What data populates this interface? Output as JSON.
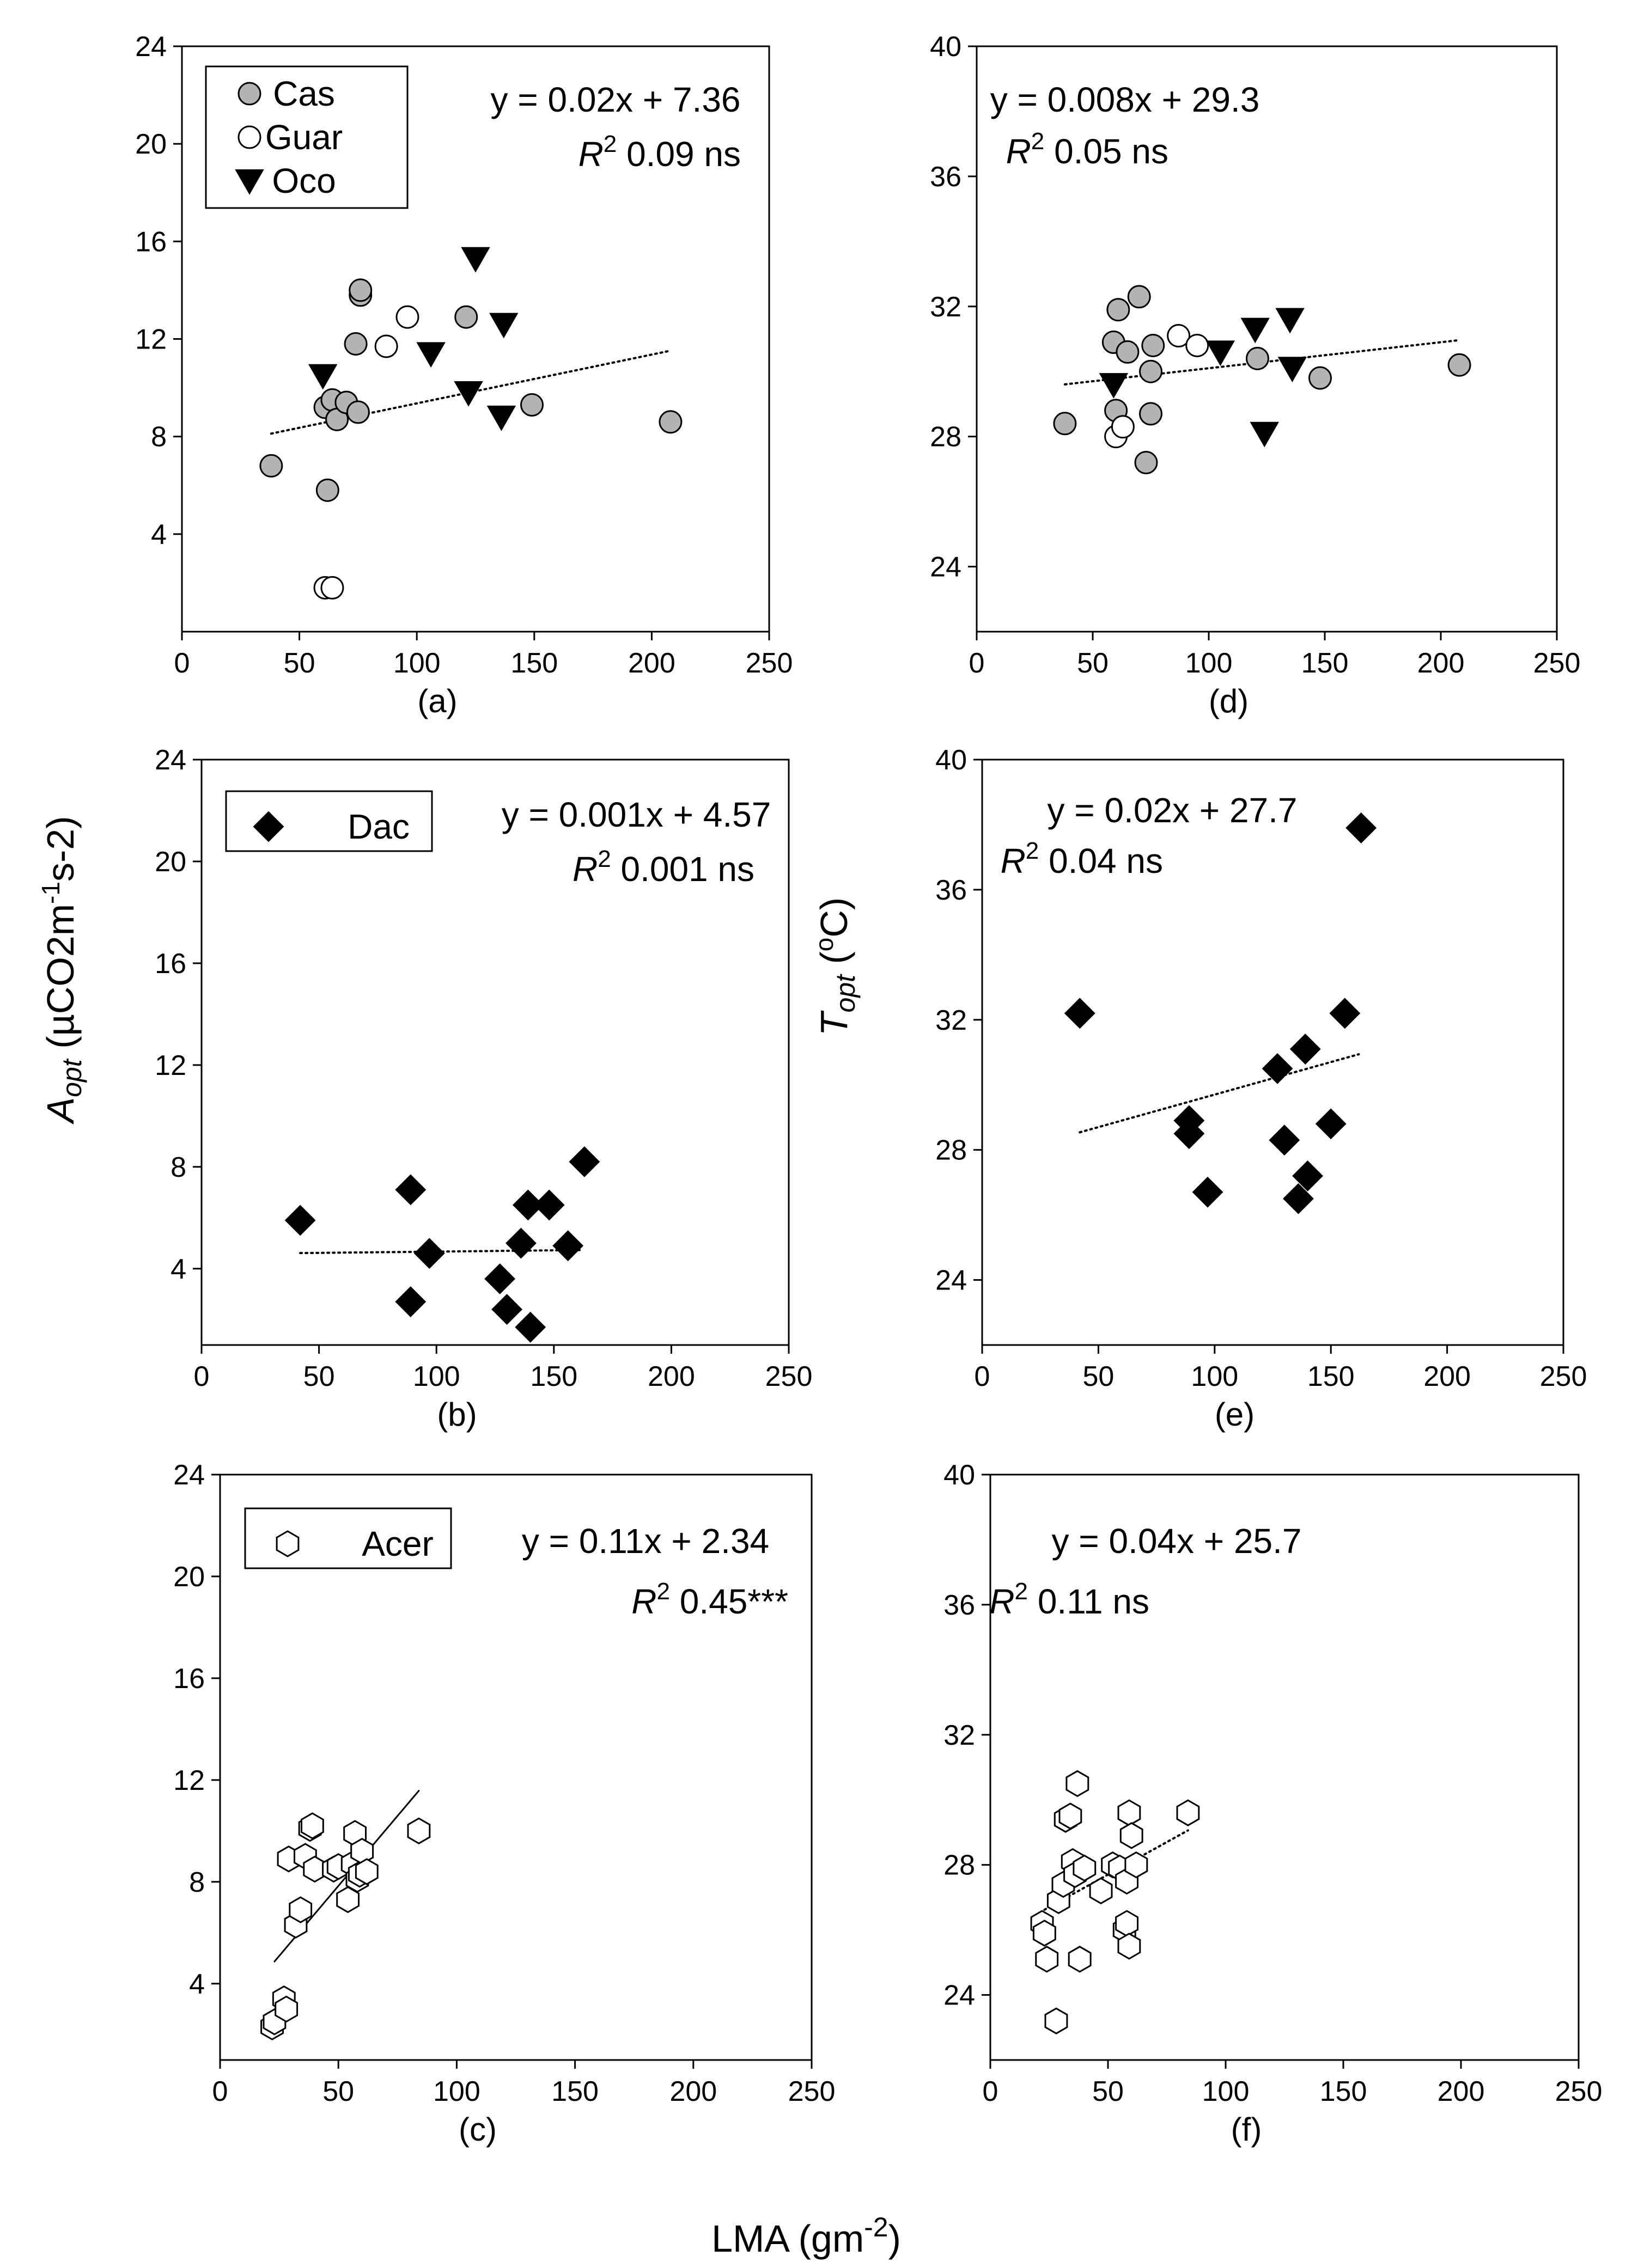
{
  "figure": {
    "xlabel": "LMA (gm",
    "xlabel_sup": "-2",
    "xlabel_end": ")",
    "ylabel_left_main": "A",
    "ylabel_left_sub": "opt",
    "ylabel_left_units_1": " (µCO2m",
    "ylabel_left_units_sup1": "-1",
    "ylabel_left_units_2": "s-2)",
    "ylabel_right_main": "T",
    "ylabel_right_sub": "opt",
    "ylabel_right_units_1": " (",
    "ylabel_right_units_sup": "o",
    "ylabel_right_units_2": "C)"
  },
  "chart_data": [
    {
      "id": "a",
      "type": "scatter",
      "label": "(a)",
      "xlim": [
        0,
        250
      ],
      "ylim": [
        0,
        24
      ],
      "xticks": [
        0,
        50,
        100,
        150,
        200,
        250
      ],
      "yticks": [
        4,
        8,
        12,
        16,
        20,
        24
      ],
      "equation": "y = 0.02x + 7.36",
      "r2_label": "R",
      "r2_sup": "2",
      "r2_value": " 0.09 ns",
      "trendline": {
        "style": "dotted",
        "x": [
          38,
          208
        ]
      },
      "legend": [
        {
          "name": "Cas",
          "marker": "circle-gray"
        },
        {
          "name": "Guar",
          "marker": "circle-open"
        },
        {
          "name": "Oco",
          "marker": "triangle-down"
        }
      ],
      "series": [
        {
          "name": "Cas",
          "marker": "circle-gray",
          "points": [
            [
              38,
              6.8
            ],
            [
              61,
              9.2
            ],
            [
              62,
              5.8
            ],
            [
              64,
              9.5
            ],
            [
              66,
              8.7
            ],
            [
              70,
              9.4
            ],
            [
              74,
              11.8
            ],
            [
              75,
              9.0
            ],
            [
              76,
              13.8
            ],
            [
              76,
              14.0
            ],
            [
              121,
              12.9
            ],
            [
              149,
              9.3
            ],
            [
              208,
              8.6
            ]
          ]
        },
        {
          "name": "Guar",
          "marker": "circle-open",
          "points": [
            [
              61,
              1.8
            ],
            [
              64,
              1.8
            ],
            [
              87,
              11.7
            ],
            [
              96,
              12.9
            ]
          ]
        },
        {
          "name": "Oco",
          "marker": "triangle-down",
          "points": [
            [
              60,
              10.5
            ],
            [
              106,
              11.4
            ],
            [
              122,
              9.8
            ],
            [
              125,
              15.3
            ],
            [
              136,
              8.8
            ],
            [
              137,
              12.6
            ]
          ]
        }
      ]
    },
    {
      "id": "d",
      "type": "scatter",
      "label": "(d)",
      "xlim": [
        0,
        250
      ],
      "ylim": [
        22,
        40
      ],
      "xticks": [
        0,
        50,
        100,
        150,
        200,
        250
      ],
      "yticks": [
        24,
        28,
        32,
        36,
        40
      ],
      "equation": "y = 0.008x + 29.3",
      "r2_label": "R",
      "r2_sup": "2",
      "r2_value": " 0.05 ns",
      "trendline": {
        "style": "dotted",
        "x": [
          38,
          208
        ]
      },
      "legend": [],
      "series": [
        {
          "name": "Cas",
          "marker": "circle-gray",
          "points": [
            [
              38,
              28.4
            ],
            [
              59,
              30.9
            ],
            [
              60,
              28.8
            ],
            [
              61,
              31.9
            ],
            [
              65,
              30.6
            ],
            [
              70,
              32.3
            ],
            [
              73,
              27.2
            ],
            [
              75,
              28.7
            ],
            [
              75,
              30.0
            ],
            [
              76,
              30.8
            ],
            [
              121,
              30.4
            ],
            [
              148,
              29.8
            ],
            [
              208,
              30.2
            ]
          ]
        },
        {
          "name": "Guar",
          "marker": "circle-open",
          "points": [
            [
              60,
              28.0
            ],
            [
              63,
              28.3
            ],
            [
              87,
              31.1
            ],
            [
              95,
              30.8
            ]
          ]
        },
        {
          "name": "Oco",
          "marker": "triangle-down",
          "points": [
            [
              59,
              29.6
            ],
            [
              105,
              30.6
            ],
            [
              120,
              31.3
            ],
            [
              124,
              28.1
            ],
            [
              135,
              31.6
            ],
            [
              136,
              30.1
            ]
          ]
        }
      ]
    },
    {
      "id": "b",
      "type": "scatter",
      "label": "(b)",
      "xlim": [
        0,
        250
      ],
      "ylim": [
        1,
        24
      ],
      "xticks": [
        0,
        50,
        100,
        150,
        200,
        250
      ],
      "yticks": [
        4,
        8,
        12,
        16,
        20,
        24
      ],
      "equation": "y = 0.001x + 4.57",
      "r2_label": "R",
      "r2_sup": "2",
      "r2_value": " 0.001 ns",
      "trendline": {
        "style": "dotted",
        "x": [
          42,
          162
        ]
      },
      "legend": [
        {
          "name": "Dac",
          "marker": "diamond"
        }
      ],
      "series": [
        {
          "name": "Dac",
          "marker": "diamond",
          "points": [
            [
              42,
              5.9
            ],
            [
              89,
              7.1
            ],
            [
              89,
              2.7
            ],
            [
              97,
              4.6
            ],
            [
              127,
              3.6
            ],
            [
              130,
              2.4
            ],
            [
              136,
              5.0
            ],
            [
              139,
              6.5
            ],
            [
              140,
              1.7
            ],
            [
              148,
              6.5
            ],
            [
              156,
              4.9
            ],
            [
              163,
              8.2
            ]
          ]
        }
      ]
    },
    {
      "id": "e",
      "type": "scatter",
      "label": "(e)",
      "xlim": [
        0,
        250
      ],
      "ylim": [
        22,
        40
      ],
      "xticks": [
        0,
        50,
        100,
        150,
        200,
        250
      ],
      "yticks": [
        24,
        28,
        32,
        36,
        40
      ],
      "equation": "y = 0.02x + 27.7",
      "r2_label": "R",
      "r2_sup": "2",
      "r2_value": " 0.04 ns",
      "trendline": {
        "style": "dotted",
        "x": [
          42,
          162
        ]
      },
      "legend": [],
      "series": [
        {
          "name": "Dac",
          "marker": "diamond",
          "points": [
            [
              42,
              32.2
            ],
            [
              89,
              28.9
            ],
            [
              89,
              28.5
            ],
            [
              97,
              26.7
            ],
            [
              127,
              30.5
            ],
            [
              130,
              28.3
            ],
            [
              136,
              26.5
            ],
            [
              139,
              31.1
            ],
            [
              140,
              27.2
            ],
            [
              150,
              28.8
            ],
            [
              156,
              32.2
            ],
            [
              163,
              37.9
            ]
          ]
        }
      ]
    },
    {
      "id": "c",
      "type": "scatter",
      "label": "(c)",
      "xlim": [
        0,
        250
      ],
      "ylim": [
        1,
        24
      ],
      "xticks": [
        0,
        50,
        100,
        150,
        200,
        250
      ],
      "yticks": [
        4,
        8,
        12,
        16,
        20,
        24
      ],
      "equation": "y = 0.11x + 2.34",
      "r2_label": "R",
      "r2_sup": "2",
      "r2_value": " 0.45***",
      "trendline": {
        "style": "solid",
        "x": [
          23,
          84
        ]
      },
      "legend": [
        {
          "name": "Acer",
          "marker": "hexagon-open"
        }
      ],
      "series": [
        {
          "name": "Acer",
          "marker": "hexagon-open",
          "points": [
            [
              22,
              2.3
            ],
            [
              23,
              2.5
            ],
            [
              27,
              3.4
            ],
            [
              28,
              3.0
            ],
            [
              29,
              8.9
            ],
            [
              32,
              6.3
            ],
            [
              34,
              6.9
            ],
            [
              36,
              9.0
            ],
            [
              38,
              10.1
            ],
            [
              39,
              10.2
            ],
            [
              40,
              8.5
            ],
            [
              48,
              8.5
            ],
            [
              50,
              8.6
            ],
            [
              54,
              7.3
            ],
            [
              56,
              8.7
            ],
            [
              57,
              9.9
            ],
            [
              58,
              8.1
            ],
            [
              59,
              8.3
            ],
            [
              60,
              9.2
            ],
            [
              62,
              8.4
            ],
            [
              84,
              10.0
            ]
          ]
        }
      ]
    },
    {
      "id": "f",
      "type": "scatter",
      "label": "(f)",
      "xlim": [
        0,
        250
      ],
      "ylim": [
        22,
        40
      ],
      "xticks": [
        0,
        50,
        100,
        150,
        200,
        250
      ],
      "yticks": [
        24,
        28,
        32,
        36,
        40
      ],
      "equation": "y = 0.04x + 25.7",
      "r2_label": "R",
      "r2_sup": "2",
      "r2_value": " 0.11 ns",
      "trendline": {
        "style": "dotted",
        "x": [
          23,
          84
        ]
      },
      "legend": [],
      "series": [
        {
          "name": "Acer",
          "marker": "hexagon-open",
          "points": [
            [
              22,
              26.2
            ],
            [
              23,
              25.9
            ],
            [
              24,
              25.1
            ],
            [
              28,
              23.2
            ],
            [
              29,
              26.9
            ],
            [
              31,
              27.4
            ],
            [
              32,
              29.4
            ],
            [
              34,
              29.5
            ],
            [
              35,
              28.1
            ],
            [
              36,
              27.7
            ],
            [
              37,
              30.5
            ],
            [
              38,
              25.1
            ],
            [
              40,
              27.9
            ],
            [
              47,
              27.2
            ],
            [
              52,
              28.0
            ],
            [
              55,
              27.9
            ],
            [
              57,
              26.0
            ],
            [
              58,
              26.2
            ],
            [
              58,
              27.5
            ],
            [
              59,
              29.6
            ],
            [
              59,
              25.5
            ],
            [
              60,
              28.9
            ],
            [
              62,
              28.0
            ],
            [
              84,
              29.6
            ]
          ]
        }
      ]
    }
  ]
}
